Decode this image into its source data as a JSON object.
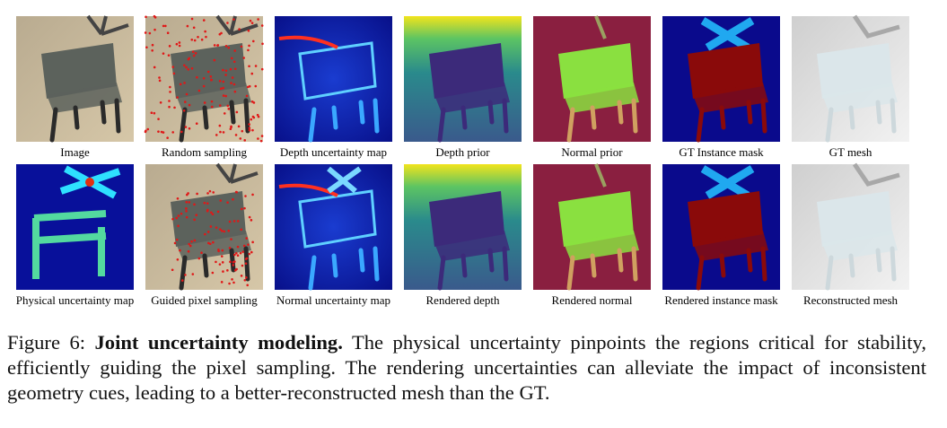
{
  "figure": {
    "panels": [
      [
        "Image",
        "Random sampling",
        "Depth uncertainty map",
        "Depth prior",
        "Normal prior",
        "GT Instance mask",
        "GT mesh"
      ],
      [
        "Physical uncertainty map",
        "Guided pixel sampling",
        "Normal uncertainty map",
        "Rendered depth",
        "Rendered normal",
        "Rendered instance mask",
        "Reconstructed mesh"
      ]
    ]
  },
  "caption": {
    "label": "Figure 6:",
    "title": "Joint uncertainty modeling.",
    "text": "The physical uncertainty pinpoints the regions critical for stability, efficiently guiding the pixel sampling. The rendering uncertainties can alleviate the impact of inconsistent geometry cues, leading to a better-reconstructed mesh than the GT."
  }
}
